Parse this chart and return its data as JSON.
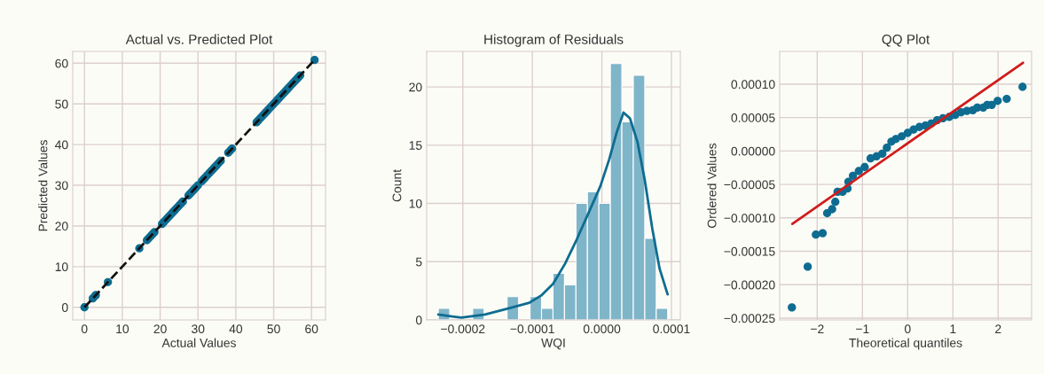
{
  "chart_data": [
    {
      "type": "scatter",
      "title": "Actual vs. Predicted Plot",
      "xlabel": "Actual Values",
      "ylabel": "Predicted Values",
      "xlim": [
        -3.1,
        63.7
      ],
      "ylim": [
        -3.1,
        62.9
      ],
      "xticks": [
        0,
        10,
        20,
        30,
        40,
        50,
        60
      ],
      "yticks": [
        0,
        10,
        20,
        30,
        40,
        50,
        60
      ],
      "grid": true,
      "series": [
        {
          "type": "scatter",
          "marker": "circle",
          "color": "#0e6c91",
          "x": [
            0,
            2.2,
            2.8,
            3,
            6.2,
            14.5,
            16.5,
            17,
            17.5,
            18,
            18.5,
            20.5,
            21,
            21.5,
            22,
            22.5,
            23,
            23.5,
            24,
            24.5,
            25,
            25.5,
            26,
            27.5,
            28,
            28.5,
            29,
            29.5,
            30,
            31,
            31.5,
            32,
            32.5,
            33,
            33.5,
            34,
            34.5,
            35,
            35.5,
            36,
            38,
            38.5,
            39,
            45.5,
            46,
            46.5,
            47,
            47.5,
            48,
            48.5,
            49,
            49.5,
            50,
            50.5,
            51,
            51.5,
            52,
            52.5,
            53,
            53.5,
            54,
            54.5,
            55,
            55.5,
            56,
            56.5,
            57,
            60.8
          ],
          "values": [
            0,
            2.2,
            2.8,
            3,
            6.2,
            14.5,
            16.5,
            17,
            17.5,
            18,
            18.5,
            20.5,
            21,
            21.5,
            22,
            22.5,
            23,
            23.5,
            24,
            24.5,
            25,
            25.5,
            26,
            27.5,
            28,
            28.5,
            29,
            29.5,
            30,
            31,
            31.5,
            32,
            32.5,
            33,
            33.5,
            34,
            34.5,
            35,
            35.5,
            36,
            38,
            38.5,
            39,
            45.5,
            46,
            46.5,
            47,
            47.5,
            48,
            48.5,
            49,
            49.5,
            50,
            50.5,
            51,
            51.5,
            52,
            52.5,
            53,
            53.5,
            54,
            54.5,
            55,
            55.5,
            56,
            56.5,
            57,
            60.8
          ]
        },
        {
          "type": "line",
          "line_style": "dashed",
          "color": "#111111",
          "x": [
            0,
            60.8
          ],
          "values": [
            0,
            60.8
          ]
        }
      ]
    },
    {
      "type": "histogram",
      "title": "Histogram of Residuals",
      "xlabel": "WQI",
      "ylabel": "Count",
      "color": "#7fb5c9",
      "grid": true,
      "xlim": [
        -0.000252,
        0.0001128
      ],
      "ylim": [
        0,
        23.05
      ],
      "xticks": [
        {
          "value": -0.0002,
          "label": "−0.0002"
        },
        {
          "value": -0.0001,
          "label": "−0.0001"
        },
        {
          "value": 0,
          "label": "0.0000"
        },
        {
          "value": 0.0001,
          "label": "0.0001"
        }
      ],
      "yticks": [
        0,
        5,
        10,
        15,
        20
      ],
      "bins": [
        -0.0002353,
        -0.0002188,
        -0.0002023,
        -0.0001858,
        -0.0001693,
        -0.0001528,
        -0.0001363,
        -0.0001198,
        -0.0001033,
        -8.68e-05,
        -7.03e-05,
        -5.38e-05,
        -3.73e-05,
        -2.08e-05,
        -4.3e-06,
        1.22e-05,
        2.87e-05,
        4.52e-05,
        6.17e-05,
        7.82e-05,
        9.47e-05
      ],
      "values": [
        1,
        0,
        0,
        1,
        0,
        0,
        2,
        0,
        2,
        1,
        4,
        3,
        10,
        11,
        10,
        22,
        17,
        21,
        7,
        1
      ],
      "series": [
        {
          "type": "line",
          "color": "#0e6c91",
          "x": [
            -0.0002353,
            -0.0002021,
            -0.0001681,
            -0.0001362,
            -0.0001043,
            -8.72e-05,
            -7.02e-05,
            -5.32e-05,
            -3.62e-05,
            -1.91e-05,
            -2.1e-06,
            1.06e-05,
            2.13e-05,
            3.11e-05,
            4.04e-05,
            5.11e-05,
            6.17e-05,
            7.23e-05,
            8.3e-05,
            9.45e-05
          ],
          "values": [
            0.46,
            0.2,
            0.46,
            0.96,
            1.47,
            2.1,
            3.1,
            4.8,
            6.9,
            9.2,
            11.5,
            13.8,
            16.1,
            17.8,
            17.3,
            15.3,
            12.0,
            7.9,
            4.4,
            2.2
          ]
        }
      ]
    },
    {
      "type": "scatter",
      "title": "QQ Plot",
      "xlabel": "Theoretical quantiles",
      "ylabel": "Ordered Values",
      "grid": true,
      "xlim": [
        -2.83,
        2.74
      ],
      "ylim": [
        -0.0002527,
        0.000149
      ],
      "xticks": [
        {
          "value": -2,
          "label": "−2"
        },
        {
          "value": -1,
          "label": "−1"
        },
        0,
        1,
        2
      ],
      "yticks": [
        {
          "value": -0.00025,
          "label": "−0.00025"
        },
        {
          "value": -0.0002,
          "label": "−0.00020"
        },
        {
          "value": -0.00015,
          "label": "−0.00015"
        },
        {
          "value": -0.0001,
          "label": "−0.00010"
        },
        {
          "value": -5e-05,
          "label": "−0.00005"
        },
        {
          "value": 0,
          "label": "0.00000"
        },
        {
          "value": 5e-05,
          "label": "0.00005"
        },
        {
          "value": 0.0001,
          "label": "0.00010"
        }
      ],
      "series": [
        {
          "type": "scatter",
          "marker": "circle",
          "color": "#0e6c91",
          "x": [
            -2.56,
            -2.21,
            -2.03,
            -1.88,
            -1.78,
            -1.67,
            -1.6,
            -1.55,
            -1.44,
            -1.33,
            -1.31,
            -1.21,
            -1.08,
            -0.95,
            -0.82,
            -0.69,
            -0.56,
            -0.46,
            -0.36,
            -0.26,
            -0.13,
            0,
            0.13,
            0.26,
            0.39,
            0.52,
            0.65,
            0.78,
            0.92,
            1.05,
            1.18,
            1.31,
            1.44,
            1.54,
            1.67,
            1.76,
            1.86,
            1.99,
            2.19,
            2.54
          ],
          "values": [
            -0.000234,
            -0.000173,
            -0.000125,
            -0.000123,
            -9.3e-05,
            -8.7e-05,
            -7.6e-05,
            -6.1e-05,
            -6.1e-05,
            -5.6e-05,
            -4.6e-05,
            -3.7e-05,
            -3e-05,
            -2.4e-05,
            -1.1e-05,
            -8e-06,
            -4e-06,
            5e-06,
            1.4e-05,
            1.8e-05,
            2.2e-05,
            2.7e-05,
            3.2e-05,
            3.6e-05,
            3.8e-05,
            4.1e-05,
            4.6e-05,
            4.9e-05,
            5.1e-05,
            5.4e-05,
            5.8e-05,
            6e-05,
            6.1e-05,
            6.5e-05,
            6.5e-05,
            6.9e-05,
            6.9e-05,
            7.5e-05,
            7.8e-05,
            9.6e-05
          ]
        },
        {
          "type": "line",
          "line_style": "solid",
          "color": "#d01c1c",
          "x": [
            -2.55,
            2.55
          ],
          "values": [
            -0.000109,
            0.000132
          ]
        }
      ]
    }
  ]
}
